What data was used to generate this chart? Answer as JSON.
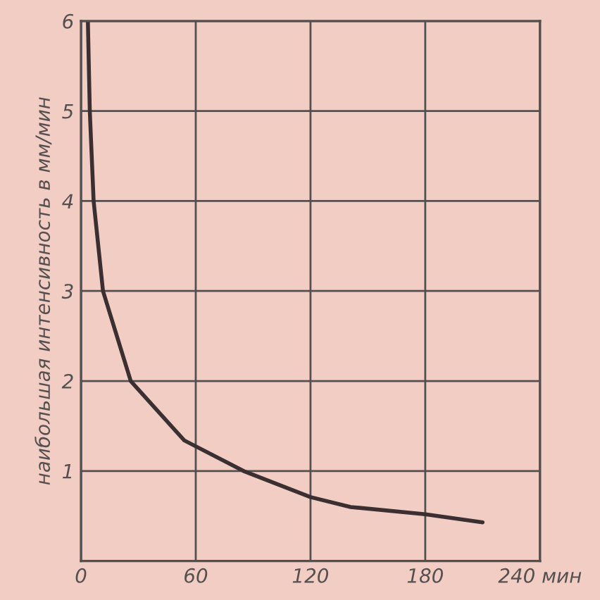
{
  "chart_data": {
    "type": "line",
    "ylabel": "наибольшая интенсивность в мм/мин",
    "x": [
      3.6,
      4.6,
      6.6,
      11.5,
      26,
      54,
      85,
      120,
      141,
      180,
      210
    ],
    "series": [
      {
        "color": "#3a3032",
        "values": [
          6,
          5,
          4,
          3,
          2,
          1.34,
          1,
          0.71,
          0.6,
          0.52,
          0.43
        ]
      }
    ],
    "xlim": [
      0,
      240
    ],
    "ylim": [
      0,
      6
    ],
    "xticks": [
      0,
      60,
      120,
      180,
      {
        "value": 240,
        "label": "240 мин"
      }
    ],
    "yticks": [
      {
        "value": 0,
        "label": null
      },
      1,
      2,
      3,
      4,
      5,
      6
    ],
    "grid": true,
    "marker": "none",
    "line_style": "solid"
  }
}
